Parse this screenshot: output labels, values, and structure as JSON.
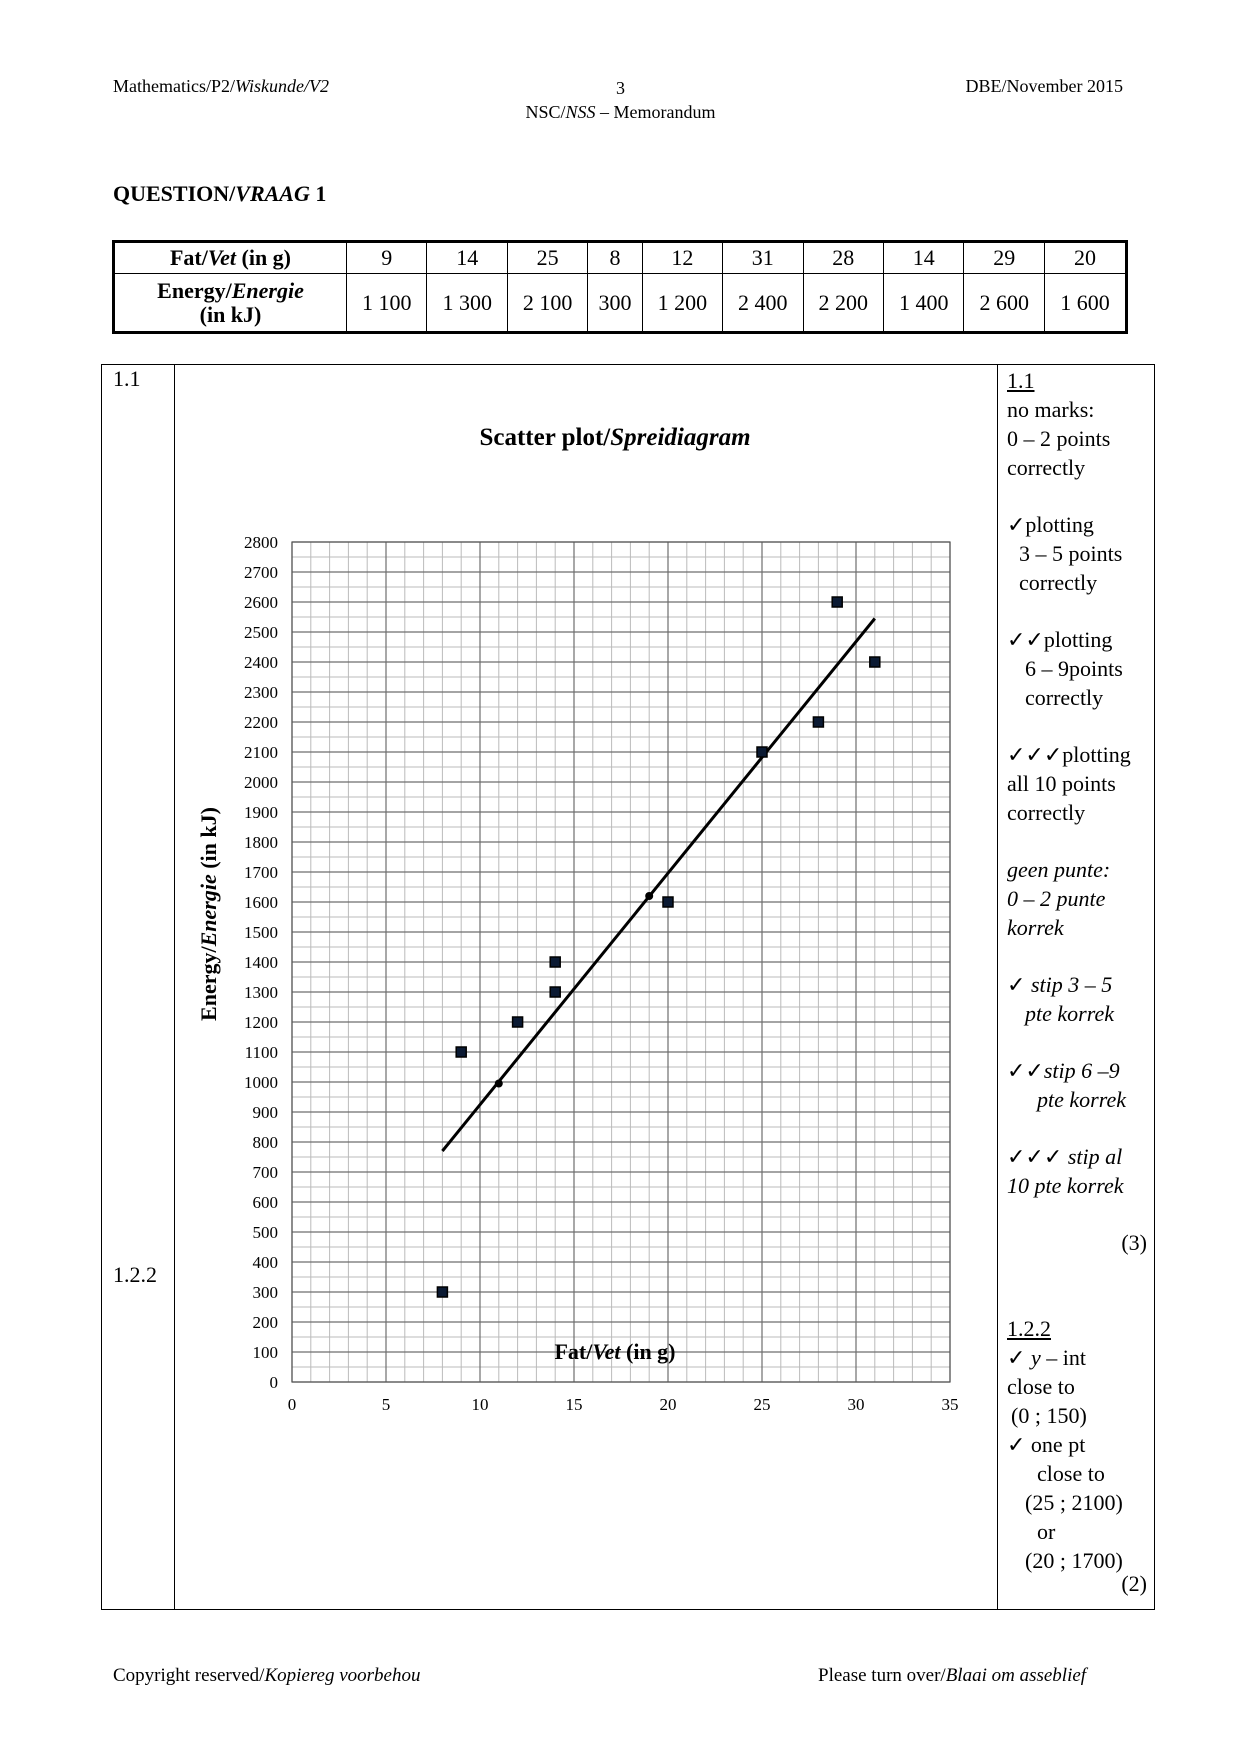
{
  "header": {
    "left_a": "Mathematics/P2/",
    "left_b": "Wiskunde/V2",
    "page_number": "3",
    "center_a": "NSC/",
    "center_b": "NSS",
    "center_c": " – Memorandum",
    "right": "DBE/November 2015"
  },
  "question": {
    "label_a": "QUESTION/",
    "label_b": "VRAAG",
    "label_c": " 1"
  },
  "data_table": {
    "row1_head_a": "Fat/",
    "row1_head_b": "Vet",
    "row1_head_c": " (in g)",
    "row2_head_a": "Energy/",
    "row2_head_b": "Energie",
    "row2_head_c": "(in kJ)",
    "fat": [
      "9",
      "14",
      "25",
      "8",
      "12",
      "31",
      "28",
      "14",
      "29",
      "20"
    ],
    "energy": [
      "1 100",
      "1 300",
      "2 100",
      "300",
      "1 200",
      "2 400",
      "2 200",
      "1 400",
      "2 600",
      "1 600"
    ]
  },
  "memo": {
    "q_1_1": "1.1",
    "q_1_2_2": "1.2.2"
  },
  "chart_data": {
    "type": "scatter",
    "title_a": "Scatter plot/",
    "title_b": "Spreidiagram",
    "xlabel_a": "Fat/",
    "xlabel_b": "Vet",
    "xlabel_c": " (in g)",
    "ylabel_a": "Energy/",
    "ylabel_b": "Energie",
    "ylabel_c": " (in kJ)",
    "xlim": [
      0,
      35
    ],
    "ylim": [
      0,
      2800
    ],
    "x_ticks": [
      "0",
      "5",
      "10",
      "15",
      "20",
      "25",
      "30",
      "35"
    ],
    "y_ticks": [
      "0",
      "100",
      "200",
      "300",
      "400",
      "500",
      "600",
      "700",
      "800",
      "900",
      "1000",
      "1100",
      "1200",
      "1300",
      "1400",
      "1500",
      "1600",
      "1700",
      "1800",
      "1900",
      "2000",
      "2100",
      "2200",
      "2300",
      "2400",
      "2500",
      "2600",
      "2700",
      "2800"
    ],
    "grid": true,
    "points": [
      {
        "x": 9,
        "y": 1100
      },
      {
        "x": 14,
        "y": 1300
      },
      {
        "x": 25,
        "y": 2100
      },
      {
        "x": 8,
        "y": 300
      },
      {
        "x": 12,
        "y": 1200
      },
      {
        "x": 31,
        "y": 2400
      },
      {
        "x": 28,
        "y": 2200
      },
      {
        "x": 14,
        "y": 1400
      },
      {
        "x": 29,
        "y": 2600
      },
      {
        "x": 20,
        "y": 1600
      }
    ],
    "regression_line": {
      "x1": 8,
      "y1": 770,
      "x2": 31,
      "y2": 2545
    },
    "line_markers": [
      {
        "x": 11,
        "y": 995
      },
      {
        "x": 19,
        "y": 1620
      }
    ]
  },
  "marking": {
    "n11_title": "1.1",
    "n11_l1": "no marks:",
    "n11_l2": "0 – 2 points",
    "n11_l3": "correctly",
    "n11_l4": "✓plotting",
    "n11_l5": "3 – 5 points",
    "n11_l6": "correctly",
    "n11_l7": "✓✓plotting",
    "n11_l8": "6 – 9points",
    "n11_l9": "correctly",
    "n11_l10": "✓✓✓plotting",
    "n11_l11": "all 10 points",
    "n11_l12": "correctly",
    "n11_a1": "geen punte:",
    "n11_a2": "0 – 2 punte",
    "n11_a3": "korrek",
    "n11_a4_tick": "✓ ",
    "n11_a4": "stip 3 – 5",
    "n11_a5": "pte korrek",
    "n11_a6_tick": "✓✓",
    "n11_a6": "stip 6 –9",
    "n11_a7": "pte korrek",
    "n11_a8_tick": "✓✓✓ ",
    "n11_a8": "stip al",
    "n11_a9": "10 pte korrek",
    "n11_marks": "(3)",
    "n122_title": "1.2.2",
    "n122_l1_tick": "✓ ",
    "n122_l1_y": "y",
    "n122_l1_rest": " – int",
    "n122_l2": "close to",
    "n122_l3": "(0 ; 150)",
    "n122_l4": "✓ one pt",
    "n122_l5": "close to",
    "n122_l6": "(25 ; 2100)",
    "n122_l7": "or",
    "n122_l8": "(20 ; 1700)",
    "n122_marks": "(2)"
  },
  "footer": {
    "left_a": "Copyright reserved/",
    "left_b": "Kopiereg voorbehou",
    "right_a": "Please turn over/",
    "right_b": "Blaai om asseblief"
  }
}
